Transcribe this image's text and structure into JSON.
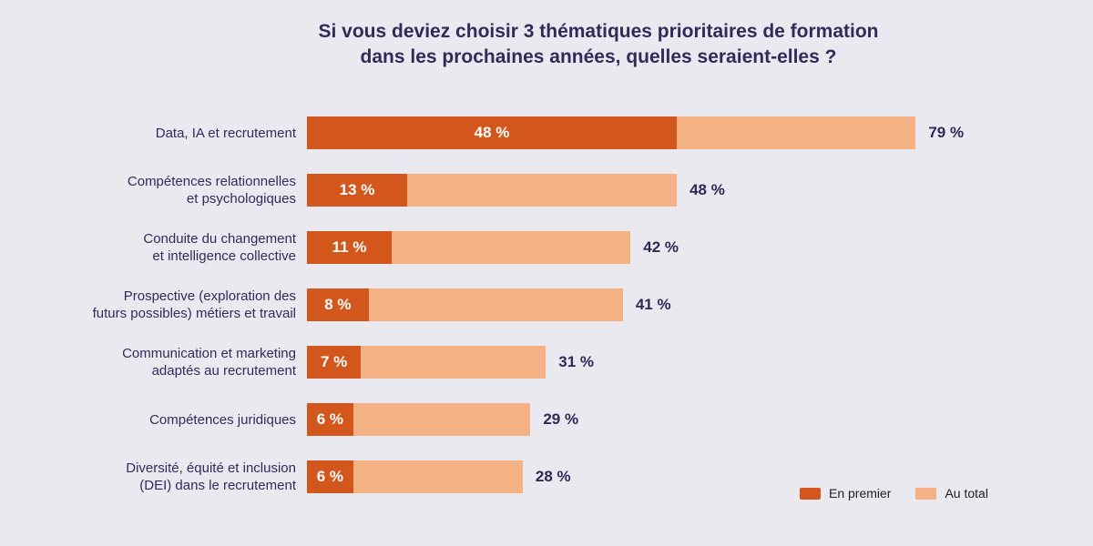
{
  "chart_data": {
    "type": "bar",
    "orientation": "horizontal",
    "title": {
      "line1": "Si vous deviez choisir 3 thématiques prioritaires de formation",
      "line2": "dans les prochaines années, quelles seraient-elles ?"
    },
    "categories": [
      "Data, IA et recrutement",
      "Compétences relationnelles\net psychologiques",
      "Conduite du changement\net intelligence collective",
      "Prospective (exploration des\nfuturs possibles) métiers et travail",
      "Communication et marketing\nadaptés au recrutement",
      "Compétences juridiques",
      "Diversité, équité et inclusion\n(DEI) dans le recrutement"
    ],
    "series": [
      {
        "name": "En premier",
        "color": "#d3571d",
        "values": [
          48,
          13,
          11,
          8,
          7,
          6,
          6
        ]
      },
      {
        "name": "Au total",
        "color": "#f3b184",
        "values": [
          79,
          48,
          42,
          41,
          31,
          29,
          28
        ]
      }
    ],
    "value_suffix": " %",
    "xlim": [
      0,
      79
    ],
    "grid": false,
    "legend_position": "bottom-right"
  },
  "colors": {
    "background": "#ebe9f0",
    "title_text": "#2e2c59",
    "category_text": "#2e2c59",
    "total_value_text": "#2b2a55",
    "bar_inner_text": "#ffffff",
    "legend_text": "#1f1f1f"
  }
}
